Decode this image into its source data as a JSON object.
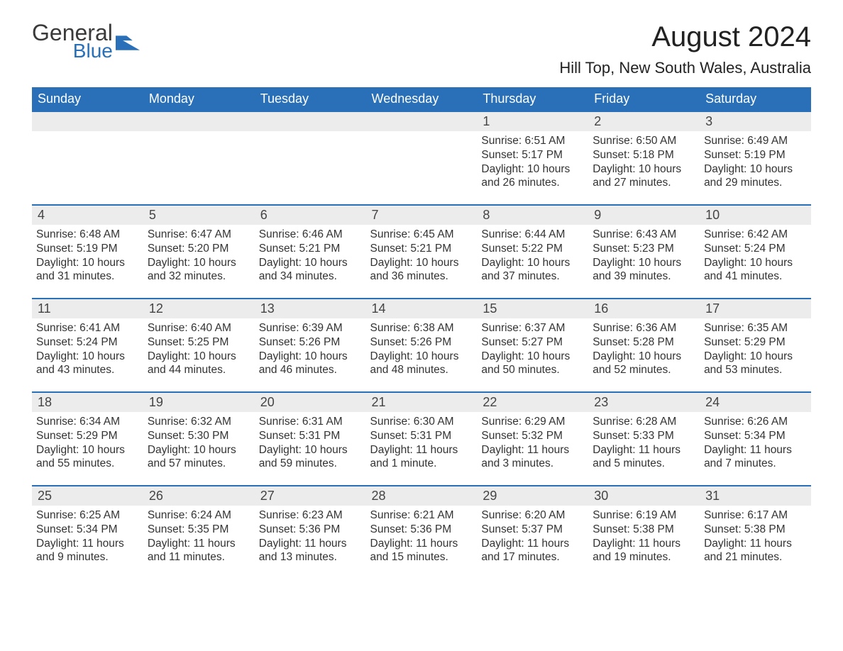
{
  "logo": {
    "general": "General",
    "blue": "Blue"
  },
  "title": "August 2024",
  "location": "Hill Top, New South Wales, Australia",
  "colors": {
    "header_bg": "#2970b8",
    "header_text": "#ffffff",
    "daynum_bg": "#ececec",
    "border": "#2970b8",
    "body_text": "#333333",
    "page_bg": "#ffffff"
  },
  "day_headers": [
    "Sunday",
    "Monday",
    "Tuesday",
    "Wednesday",
    "Thursday",
    "Friday",
    "Saturday"
  ],
  "weeks": [
    [
      {
        "num": "",
        "sunrise": "",
        "sunset": "",
        "daylight": ""
      },
      {
        "num": "",
        "sunrise": "",
        "sunset": "",
        "daylight": ""
      },
      {
        "num": "",
        "sunrise": "",
        "sunset": "",
        "daylight": ""
      },
      {
        "num": "",
        "sunrise": "",
        "sunset": "",
        "daylight": ""
      },
      {
        "num": "1",
        "sunrise": "Sunrise: 6:51 AM",
        "sunset": "Sunset: 5:17 PM",
        "daylight": "Daylight: 10 hours and 26 minutes."
      },
      {
        "num": "2",
        "sunrise": "Sunrise: 6:50 AM",
        "sunset": "Sunset: 5:18 PM",
        "daylight": "Daylight: 10 hours and 27 minutes."
      },
      {
        "num": "3",
        "sunrise": "Sunrise: 6:49 AM",
        "sunset": "Sunset: 5:19 PM",
        "daylight": "Daylight: 10 hours and 29 minutes."
      }
    ],
    [
      {
        "num": "4",
        "sunrise": "Sunrise: 6:48 AM",
        "sunset": "Sunset: 5:19 PM",
        "daylight": "Daylight: 10 hours and 31 minutes."
      },
      {
        "num": "5",
        "sunrise": "Sunrise: 6:47 AM",
        "sunset": "Sunset: 5:20 PM",
        "daylight": "Daylight: 10 hours and 32 minutes."
      },
      {
        "num": "6",
        "sunrise": "Sunrise: 6:46 AM",
        "sunset": "Sunset: 5:21 PM",
        "daylight": "Daylight: 10 hours and 34 minutes."
      },
      {
        "num": "7",
        "sunrise": "Sunrise: 6:45 AM",
        "sunset": "Sunset: 5:21 PM",
        "daylight": "Daylight: 10 hours and 36 minutes."
      },
      {
        "num": "8",
        "sunrise": "Sunrise: 6:44 AM",
        "sunset": "Sunset: 5:22 PM",
        "daylight": "Daylight: 10 hours and 37 minutes."
      },
      {
        "num": "9",
        "sunrise": "Sunrise: 6:43 AM",
        "sunset": "Sunset: 5:23 PM",
        "daylight": "Daylight: 10 hours and 39 minutes."
      },
      {
        "num": "10",
        "sunrise": "Sunrise: 6:42 AM",
        "sunset": "Sunset: 5:24 PM",
        "daylight": "Daylight: 10 hours and 41 minutes."
      }
    ],
    [
      {
        "num": "11",
        "sunrise": "Sunrise: 6:41 AM",
        "sunset": "Sunset: 5:24 PM",
        "daylight": "Daylight: 10 hours and 43 minutes."
      },
      {
        "num": "12",
        "sunrise": "Sunrise: 6:40 AM",
        "sunset": "Sunset: 5:25 PM",
        "daylight": "Daylight: 10 hours and 44 minutes."
      },
      {
        "num": "13",
        "sunrise": "Sunrise: 6:39 AM",
        "sunset": "Sunset: 5:26 PM",
        "daylight": "Daylight: 10 hours and 46 minutes."
      },
      {
        "num": "14",
        "sunrise": "Sunrise: 6:38 AM",
        "sunset": "Sunset: 5:26 PM",
        "daylight": "Daylight: 10 hours and 48 minutes."
      },
      {
        "num": "15",
        "sunrise": "Sunrise: 6:37 AM",
        "sunset": "Sunset: 5:27 PM",
        "daylight": "Daylight: 10 hours and 50 minutes."
      },
      {
        "num": "16",
        "sunrise": "Sunrise: 6:36 AM",
        "sunset": "Sunset: 5:28 PM",
        "daylight": "Daylight: 10 hours and 52 minutes."
      },
      {
        "num": "17",
        "sunrise": "Sunrise: 6:35 AM",
        "sunset": "Sunset: 5:29 PM",
        "daylight": "Daylight: 10 hours and 53 minutes."
      }
    ],
    [
      {
        "num": "18",
        "sunrise": "Sunrise: 6:34 AM",
        "sunset": "Sunset: 5:29 PM",
        "daylight": "Daylight: 10 hours and 55 minutes."
      },
      {
        "num": "19",
        "sunrise": "Sunrise: 6:32 AM",
        "sunset": "Sunset: 5:30 PM",
        "daylight": "Daylight: 10 hours and 57 minutes."
      },
      {
        "num": "20",
        "sunrise": "Sunrise: 6:31 AM",
        "sunset": "Sunset: 5:31 PM",
        "daylight": "Daylight: 10 hours and 59 minutes."
      },
      {
        "num": "21",
        "sunrise": "Sunrise: 6:30 AM",
        "sunset": "Sunset: 5:31 PM",
        "daylight": "Daylight: 11 hours and 1 minute."
      },
      {
        "num": "22",
        "sunrise": "Sunrise: 6:29 AM",
        "sunset": "Sunset: 5:32 PM",
        "daylight": "Daylight: 11 hours and 3 minutes."
      },
      {
        "num": "23",
        "sunrise": "Sunrise: 6:28 AM",
        "sunset": "Sunset: 5:33 PM",
        "daylight": "Daylight: 11 hours and 5 minutes."
      },
      {
        "num": "24",
        "sunrise": "Sunrise: 6:26 AM",
        "sunset": "Sunset: 5:34 PM",
        "daylight": "Daylight: 11 hours and 7 minutes."
      }
    ],
    [
      {
        "num": "25",
        "sunrise": "Sunrise: 6:25 AM",
        "sunset": "Sunset: 5:34 PM",
        "daylight": "Daylight: 11 hours and 9 minutes."
      },
      {
        "num": "26",
        "sunrise": "Sunrise: 6:24 AM",
        "sunset": "Sunset: 5:35 PM",
        "daylight": "Daylight: 11 hours and 11 minutes."
      },
      {
        "num": "27",
        "sunrise": "Sunrise: 6:23 AM",
        "sunset": "Sunset: 5:36 PM",
        "daylight": "Daylight: 11 hours and 13 minutes."
      },
      {
        "num": "28",
        "sunrise": "Sunrise: 6:21 AM",
        "sunset": "Sunset: 5:36 PM",
        "daylight": "Daylight: 11 hours and 15 minutes."
      },
      {
        "num": "29",
        "sunrise": "Sunrise: 6:20 AM",
        "sunset": "Sunset: 5:37 PM",
        "daylight": "Daylight: 11 hours and 17 minutes."
      },
      {
        "num": "30",
        "sunrise": "Sunrise: 6:19 AM",
        "sunset": "Sunset: 5:38 PM",
        "daylight": "Daylight: 11 hours and 19 minutes."
      },
      {
        "num": "31",
        "sunrise": "Sunrise: 6:17 AM",
        "sunset": "Sunset: 5:38 PM",
        "daylight": "Daylight: 11 hours and 21 minutes."
      }
    ]
  ]
}
